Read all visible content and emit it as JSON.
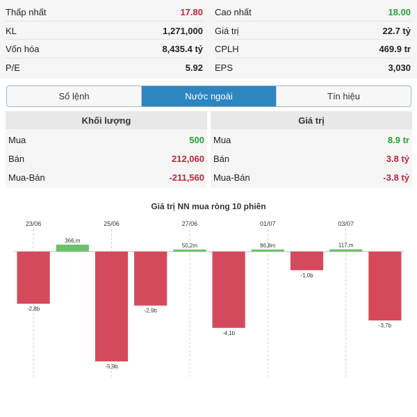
{
  "stats": {
    "left": [
      {
        "label": "Thấp nhất",
        "value": "17.80",
        "color": "red"
      },
      {
        "label": "KL",
        "value": "1,271,000",
        "color": ""
      },
      {
        "label": "Vốn hóa",
        "value": "8,435.4 tỷ",
        "color": ""
      },
      {
        "label": "P/E",
        "value": "5.92",
        "color": ""
      }
    ],
    "right": [
      {
        "label": "Cao nhất",
        "value": "18.00",
        "color": "green"
      },
      {
        "label": "Giá trị",
        "value": "22.7 tỷ",
        "color": ""
      },
      {
        "label": "CPLH",
        "value": "469.9 tr",
        "color": ""
      },
      {
        "label": "EPS",
        "value": "3,030",
        "color": ""
      }
    ]
  },
  "tabs": [
    {
      "label": "Số lệnh",
      "active": false
    },
    {
      "label": "Nước ngoài",
      "active": true
    },
    {
      "label": "Tín hiệu",
      "active": false
    }
  ],
  "volume_table": {
    "header": "Khối lượng",
    "rows": [
      {
        "label": "Mua",
        "value": "500",
        "color": "green"
      },
      {
        "label": "Bán",
        "value": "212,060",
        "color": "red"
      },
      {
        "label": "Mua-Bán",
        "value": "-211,560",
        "color": "red"
      }
    ]
  },
  "value_table": {
    "header": "Giá trị",
    "rows": [
      {
        "label": "Mua",
        "value": "8.9 tr",
        "color": "green"
      },
      {
        "label": "Bán",
        "value": "3.8 tỷ",
        "color": "red"
      },
      {
        "label": "Mua-Bán",
        "value": "-3.8 tỷ",
        "color": "red"
      }
    ]
  },
  "colors": {
    "red": "#c0253b",
    "green": "#26a234",
    "bar_negative": "#d44a5c",
    "bar_positive": "#6cc26a",
    "accent": "#2e86c1"
  },
  "chart_data": {
    "type": "bar",
    "title": "Giá trị NN mua ròng 10 phiên",
    "x_tick_labels": [
      "23/06",
      "25/06",
      "27/06",
      "01/07",
      "03/07"
    ],
    "x_tick_positions": [
      0,
      2,
      4,
      6,
      8
    ],
    "values": [
      -2.8,
      0.366,
      -5.9,
      -2.9,
      0.0502,
      -4.1,
      0.0868,
      -1.0,
      0.117,
      -3.7
    ],
    "labels": [
      "-2,8b",
      "366,m",
      "-5,9b",
      "-2,9b",
      "50,2m",
      "-4,1b",
      "86,8m",
      "-1,0b",
      "117,m",
      "-3,7b"
    ],
    "ylim": [
      -5.9,
      0.5
    ],
    "grid": "vertical-dashed"
  }
}
